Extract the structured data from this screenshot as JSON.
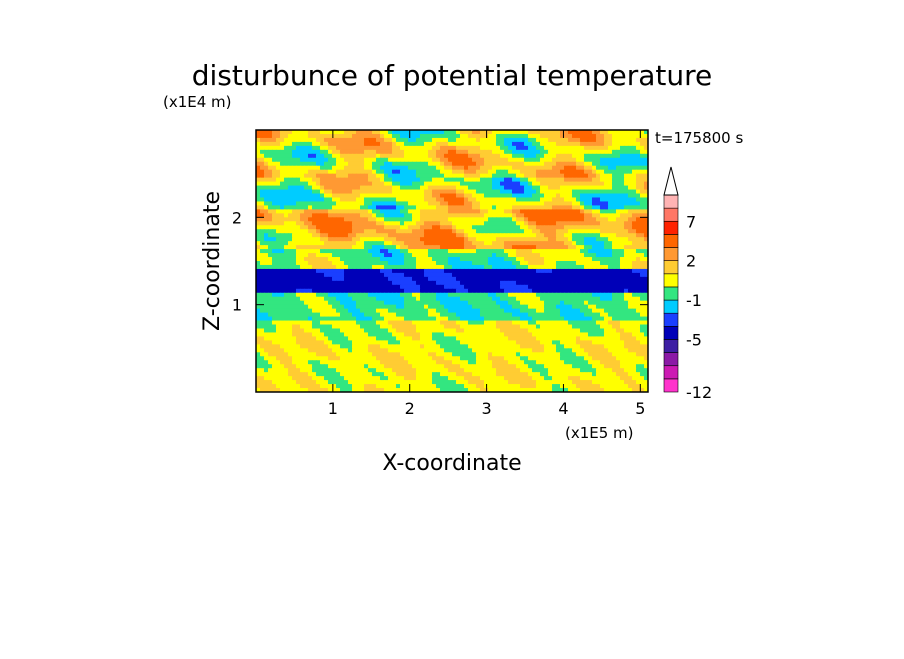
{
  "chart_data": {
    "type": "heatmap",
    "title": "disturbunce of potential temperature",
    "xlabel": "X-coordinate",
    "ylabel": "Z-coordinate",
    "x_unit": "(x1E5 m)",
    "y_unit": "(x1E4 m)",
    "time_label": "t=175800 s",
    "xlim": [
      0,
      5.1
    ],
    "ylim": [
      0,
      3.0
    ],
    "x_ticks": [
      1,
      2,
      3,
      4,
      5
    ],
    "y_ticks": [
      1,
      2
    ],
    "colorbar": {
      "levels": [
        -12,
        -11,
        -9,
        -7,
        -5,
        -3,
        -2,
        -1,
        0,
        1,
        2,
        3,
        5,
        7,
        9,
        11
      ],
      "labels": [
        "-12",
        "-5",
        "-1",
        "2",
        "7"
      ],
      "label_values": [
        -12,
        -5,
        -1,
        2,
        7
      ],
      "colors": [
        "#ff33cc",
        "#cc1ab3",
        "#8b1aa6",
        "#3d1fa3",
        "#0000b8",
        "#1a3fff",
        "#00ccff",
        "#33e680",
        "#ffff00",
        "#ffcc33",
        "#ff9933",
        "#ff6600",
        "#ff2200",
        "#ff7766",
        "#ffb3b3"
      ],
      "extend": "max"
    },
    "bands": [
      {
        "z_min": 0.0,
        "z_max": 0.08,
        "value": 0.5
      },
      {
        "z_min": 0.08,
        "z_max": 0.55,
        "value": 0.6
      },
      {
        "z_min": 0.55,
        "z_max": 0.8,
        "value": 0.5
      },
      {
        "z_min": 0.8,
        "z_max": 1.15,
        "value": -0.6
      },
      {
        "z_min": 1.15,
        "z_max": 1.4,
        "value": -3.5
      },
      {
        "z_min": 1.4,
        "z_max": 1.65,
        "value": -0.2
      },
      {
        "z_min": 1.65,
        "z_max": 2.1,
        "value": 1.6
      },
      {
        "z_min": 2.1,
        "z_max": 2.45,
        "value": 0.4
      },
      {
        "z_min": 2.45,
        "z_max": 3.0,
        "value": 0.8
      }
    ]
  }
}
